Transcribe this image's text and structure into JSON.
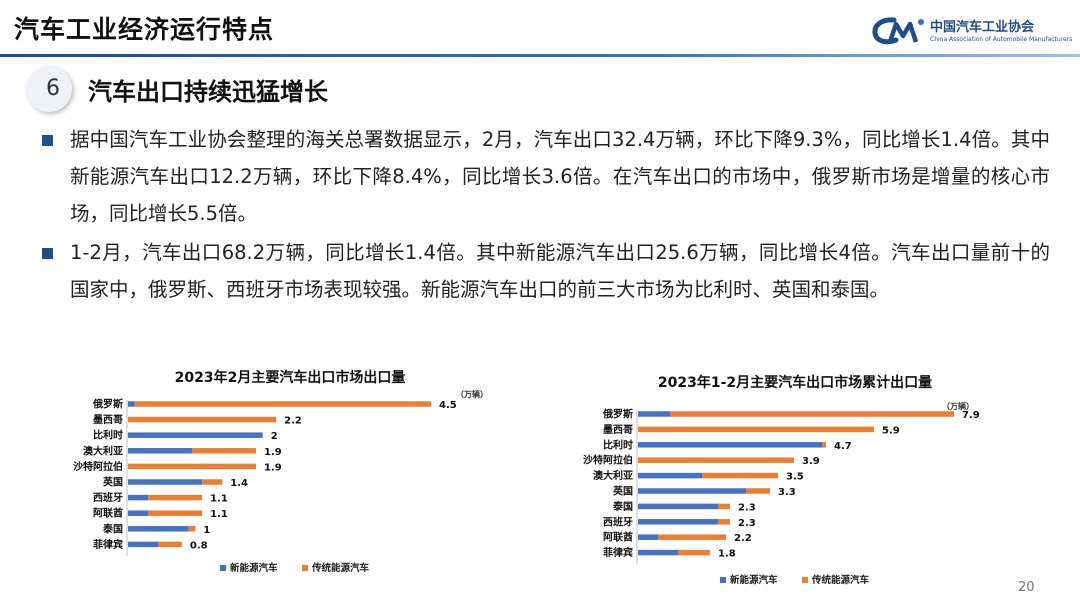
{
  "header": {
    "title": "汽车工业经济运行特点",
    "logo_cn": "中国汽车工业协会",
    "logo_en": "China Association of Automobile Manufacturers",
    "logo_icon": "caam-logo-icon",
    "accent_color": "#1f4e8c"
  },
  "section": {
    "number": "6",
    "title": "汽车出口持续迅猛增长"
  },
  "bullets": [
    {
      "text": "据中国汽车工业协会整理的海关总署数据显示，2月，汽车出口32.4万辆，环比下降9.3%，同比增长1.4倍。其中新能源汽车出口12.2万辆，环比下降8.4%，同比增长3.6倍。在汽车出口的市场中，俄罗斯市场是增量的核心市场，同比增长5.5倍。"
    },
    {
      "text": "1-2月，汽车出口68.2万辆，同比增长1.4倍。其中新能源汽车出口25.6万辆，同比增长4倍。汽车出口量前十的国家中，俄罗斯、西班牙市场表现较强。新能源汽车出口的前三大市场为比利时、英国和泰国。"
    }
  ],
  "chart_data": [
    {
      "type": "bar",
      "orientation": "horizontal",
      "stacked": true,
      "title": "2023年2月主要汽车出口市场出口量",
      "unit": "（万辆）",
      "categories": [
        "俄罗斯",
        "墨西哥",
        "比利时",
        "澳大利亚",
        "沙特阿拉伯",
        "英国",
        "西班牙",
        "阿联酋",
        "泰国",
        "菲律宾"
      ],
      "totals": [
        4.5,
        2.2,
        2,
        1.9,
        1.9,
        1.4,
        1.1,
        1.1,
        1,
        0.8
      ],
      "series": [
        {
          "name": "新能源汽车",
          "color": "#4472c4",
          "values": [
            0.1,
            0,
            2.0,
            0.95,
            0,
            1.1,
            0.3,
            0.3,
            0.9,
            0.45
          ]
        },
        {
          "name": "传统能源汽车",
          "color": "#ed7d31",
          "values": [
            4.4,
            2.2,
            0,
            0.95,
            1.9,
            0.3,
            0.8,
            0.8,
            0.1,
            0.35
          ]
        }
      ],
      "legend": "bottom",
      "xlim": [
        0,
        4.9
      ]
    },
    {
      "type": "bar",
      "orientation": "horizontal",
      "stacked": true,
      "title": "2023年1-2月主要汽车出口市场累计出口量",
      "unit": "（万辆）",
      "categories": [
        "俄罗斯",
        "墨西哥",
        "比利时",
        "沙特阿拉伯",
        "澳大利亚",
        "英国",
        "泰国",
        "西班牙",
        "阿联酋",
        "菲律宾"
      ],
      "totals": [
        7.9,
        5.9,
        4.7,
        3.9,
        3.5,
        3.3,
        2.3,
        2.3,
        2.2,
        1.8
      ],
      "series": [
        {
          "name": "新能源汽车",
          "color": "#4472c4",
          "values": [
            0.8,
            0,
            4.6,
            0,
            1.6,
            2.7,
            2.0,
            2.0,
            0.5,
            1.0
          ]
        },
        {
          "name": "传统能源汽车",
          "color": "#ed7d31",
          "values": [
            7.1,
            5.9,
            0.1,
            3.9,
            1.9,
            0.6,
            0.3,
            0.3,
            1.7,
            0.8
          ]
        }
      ],
      "legend": "bottom",
      "xlim": [
        0,
        8.5
      ]
    }
  ],
  "page_number": "20"
}
